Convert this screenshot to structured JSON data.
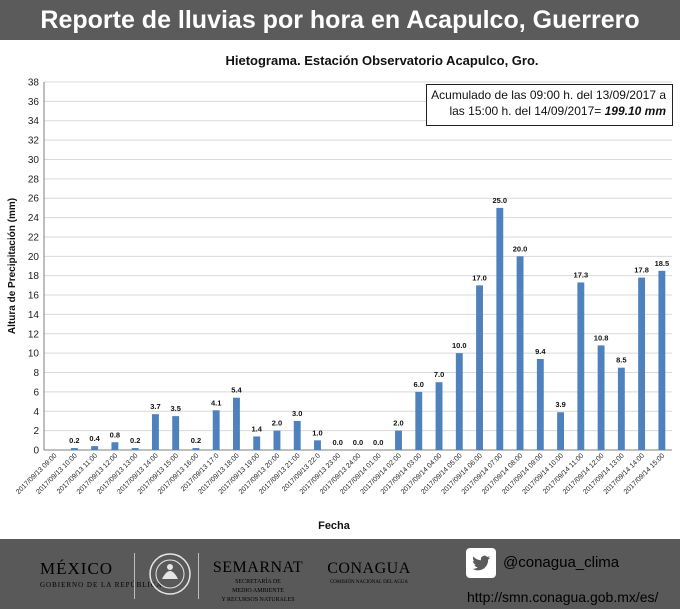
{
  "header": {
    "title": "Reporte de lluvias por hora en Acapulco, Guerrero"
  },
  "chart_data": {
    "type": "bar",
    "title": "Hietograma.  Estación Observatorio Acapulco, Gro.",
    "xlabel": "Fecha",
    "ylabel": "Altura de Precipitación (mm)",
    "ylim": [
      0,
      38
    ],
    "ytick_step": 2,
    "categories": [
      "2017/09/13 09:00",
      "2017/09/13 10:00",
      "2017/09/13 11:00",
      "2017/09/13 12:00",
      "2017/09/13 13:00",
      "2017/09/13 14:00",
      "2017/09/13 15:00",
      "2017/09/13 16:00",
      "2017/09/13 17:0",
      "2017/09/13 18:00",
      "2017/09/13 19:00",
      "2017/09/13 20:00",
      "2017/09/13 21:00",
      "2017/09/13 22:0",
      "2017/09/13 23:00",
      "2017/09/13 24:00",
      "2017/09/14 01:00",
      "2017/09/14 02:00",
      "2017/09/14 03:00",
      "2017/09/14 04:00",
      "2017/09/14 05:00",
      "2017/09/14 06:00",
      "2017/09/14 07:00",
      "2017/09/14 08:00",
      "2017/09/14 09:00",
      "2017/09/14 10:00",
      "2017/09/14 11:00",
      "2017/09/14 12:00",
      "2017/09/14 13:00",
      "2017/09/14 14:00",
      "2017/09/14 15:00"
    ],
    "values": [
      0,
      0.2,
      0.4,
      0.8,
      0.2,
      3.7,
      3.5,
      0.2,
      4.1,
      5.4,
      1.4,
      2.0,
      3.0,
      1.0,
      0.0,
      0.0,
      0.0,
      2.0,
      6.0,
      7.0,
      10.0,
      17.0,
      25.0,
      20.0,
      9.4,
      3.9,
      17.3,
      10.8,
      8.5,
      17.8,
      18.5
    ],
    "data_labels": [
      "",
      "0.2",
      "0.4",
      "0.8",
      "0.2",
      "3.7",
      "3.5",
      "0.2",
      "4.1",
      "5.4",
      "1.4",
      "2.0",
      "3.0",
      "1.0",
      "0.0",
      "0.0",
      "0.0",
      "2.0",
      "6.0",
      "7.0",
      "10.0",
      "17.0",
      "25.0",
      "20.0",
      "9.4",
      "3.9",
      "17.3",
      "10.8",
      "8.5",
      "17.8",
      "18.5"
    ],
    "bar_color": "#4f81bd",
    "grid": true,
    "annotation": {
      "line1": "Acumulado de las 09:00 h. del 13/09/2017 a",
      "line2": "las 15:00 h. del 14/09/2017=",
      "value": "199.10 mm"
    }
  },
  "footer": {
    "gob_name": "MÉXICO",
    "gob_sub": "GOBIERNO DE LA REPÚBLICA",
    "semarnat": "SEMARNAT",
    "semarnat_sub1": "SECRETARÍA DE",
    "semarnat_sub2": "MEDIO AMBIENTE",
    "semarnat_sub3": "Y RECURSOS NATURALES",
    "conagua": "CONAGUA",
    "conagua_sub": "COMISIÓN NACIONAL DEL AGUA",
    "twitter_handle": "@conagua_clima",
    "url": "http://smn.conagua.gob.mx/es/"
  }
}
